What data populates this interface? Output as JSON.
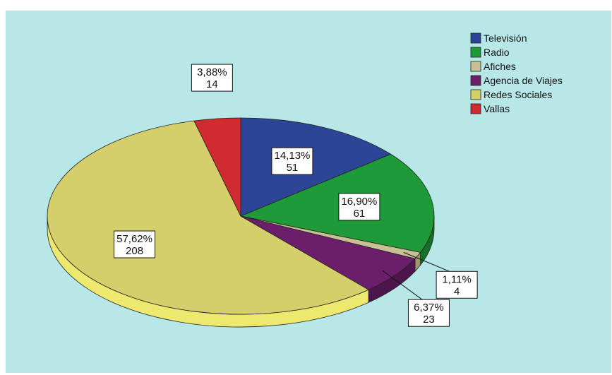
{
  "chart_data": {
    "type": "pie",
    "title": "",
    "categories": [
      "Televisión",
      "Radio",
      "Afiches",
      "Agencia de Viajes",
      "Redes Sociales",
      "Vallas"
    ],
    "values": [
      51,
      61,
      4,
      23,
      208,
      14
    ],
    "percent_labels": [
      "14,13%",
      "16,90%",
      "1,11%",
      "6,37%",
      "57,62%",
      "3,88%"
    ],
    "value_labels": [
      "51",
      "61",
      "4",
      "23",
      "208",
      "14"
    ],
    "colors": [
      "#2d4597",
      "#1f9a38",
      "#c7c095",
      "#6b1f6b",
      "#d4cf6a",
      "#cf2b31"
    ],
    "side_colors": [
      "#1c2e6e",
      "#157028",
      "#9d9670",
      "#4c154c",
      "#eee86f",
      "#9a1f24"
    ],
    "legend_position": "top-right",
    "background": "#b7e7e7",
    "three_d": true
  }
}
